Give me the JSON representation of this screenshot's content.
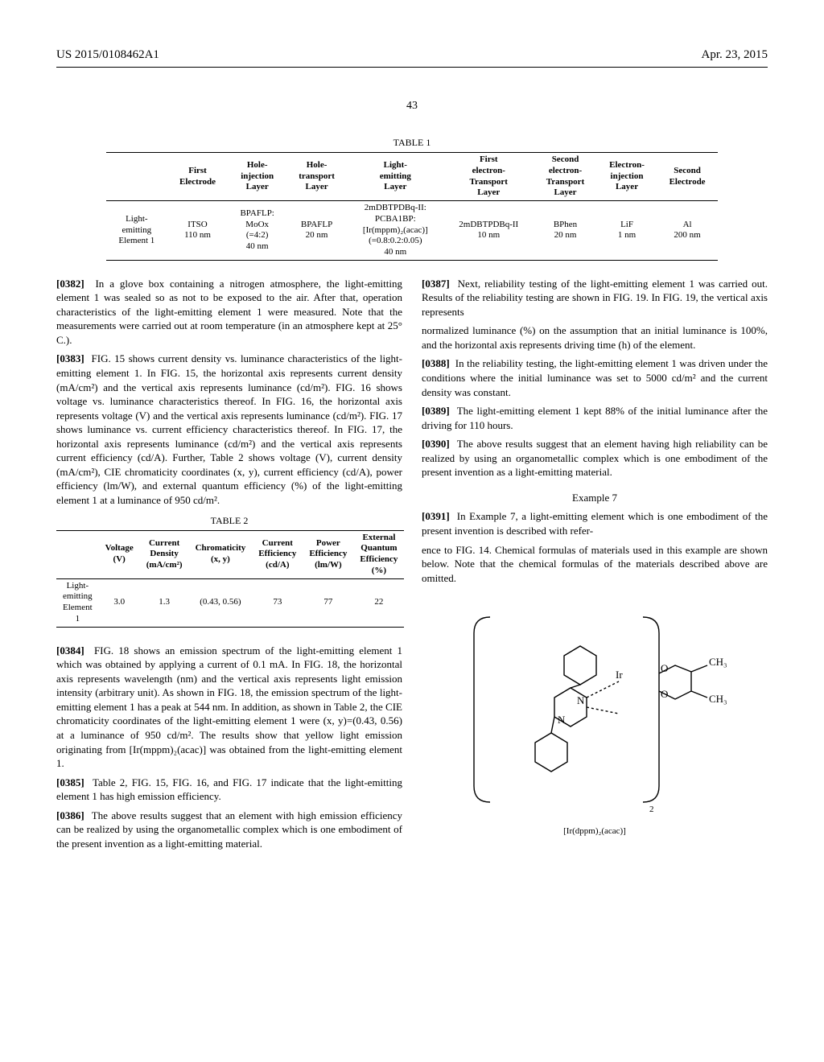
{
  "header": {
    "left": "US 2015/0108462A1",
    "right": "Apr. 23, 2015"
  },
  "page_number": "43",
  "table1": {
    "caption": "TABLE 1",
    "columns": [
      "",
      "First\nElectrode",
      "Hole-\ninjection\nLayer",
      "Hole-\ntransport\nLayer",
      "Light-\nemitting\nLayer",
      "First\nelectron-\nTransport\nLayer",
      "Second\nelectron-\nTransport\nLayer",
      "Electron-\ninjection\nLayer",
      "Second\nElectrode"
    ],
    "row": [
      "Light-\nemitting\nElement 1",
      "ITSO\n110 nm",
      "BPAFLP:\nMoOx\n(=4:2)\n40 nm",
      "BPAFLP\n20 nm",
      "2mDBTPDBq-II:\nPCBA1BP:\n[Ir(mppm)₂(acac)]\n(=0.8:0.2:0.05)\n40 nm",
      "2mDBTPDBq-II\n10 nm",
      "BPhen\n20 nm",
      "LiF\n1 nm",
      "Al\n200 nm"
    ]
  },
  "table2": {
    "caption": "TABLE 2",
    "columns": [
      "",
      "Voltage\n(V)",
      "Current\nDensity\n(mA/cm²)",
      "Chromaticity\n(x, y)",
      "Current\nEfficiency\n(cd/A)",
      "Power\nEfficiency\n(lm/W)",
      "External\nQuantum\nEfficiency\n(%)"
    ],
    "row": [
      "Light-\nemitting\nElement 1",
      "3.0",
      "1.3",
      "(0.43, 0.56)",
      "73",
      "77",
      "22"
    ]
  },
  "paras": {
    "p0382": "In a glove box containing a nitrogen atmosphere, the light-emitting element 1 was sealed so as not to be exposed to the air. After that, operation characteristics of the light-emitting element 1 were measured. Note that the measurements were carried out at room temperature (in an atmosphere kept at 25° C.).",
    "p0383": "FIG. 15 shows current density vs. luminance characteristics of the light-emitting element 1. In FIG. 15, the horizontal axis represents current density (mA/cm²) and the vertical axis represents luminance (cd/m²). FIG. 16 shows voltage vs. luminance characteristics thereof. In FIG. 16, the horizontal axis represents voltage (V) and the vertical axis represents luminance (cd/m²). FIG. 17 shows luminance vs. current efficiency characteristics thereof. In FIG. 17, the horizontal axis represents luminance (cd/m²) and the vertical axis represents current efficiency (cd/A). Further, Table 2 shows voltage (V), current density (mA/cm²), CIE chromaticity coordinates (x, y), current efficiency (cd/A), power efficiency (lm/W), and external quantum efficiency (%) of the light-emitting element 1 at a luminance of 950 cd/m².",
    "p0384": "FIG. 18 shows an emission spectrum of the light-emitting element 1 which was obtained by applying a current of 0.1 mA. In FIG. 18, the horizontal axis represents wavelength (nm) and the vertical axis represents light emission intensity (arbitrary unit). As shown in FIG. 18, the emission spectrum of the light-emitting element 1 has a peak at 544 nm. In addition, as shown in Table 2, the CIE chromaticity coordinates of the light-emitting element 1 were (x, y)=(0.43, 0.56) at a luminance of 950 cd/m². The results show that yellow light emission originating from [Ir(mppm)₂(acac)] was obtained from the light-emitting element 1.",
    "p0385": "Table 2, FIG. 15, FIG. 16, and FIG. 17 indicate that the light-emitting element 1 has high emission efficiency.",
    "p0386": "The above results suggest that an element with high emission efficiency can be realized by using the organometallic complex which is one embodiment of the present invention as a light-emitting material.",
    "p0387": "Next, reliability testing of the light-emitting element 1 was carried out. Results of the reliability testing are shown in FIG. 19. In FIG. 19, the vertical axis represents",
    "right_top": "normalized luminance (%) on the assumption that an initial luminance is 100%, and the horizontal axis represents driving time (h) of the element.",
    "p0388": "In the reliability testing, the light-emitting element 1 was driven under the conditions where the initial luminance was set to 5000 cd/m² and the current density was constant.",
    "p0389": "The light-emitting element 1 kept 88% of the initial luminance after the driving for 110 hours.",
    "p0390": "The above results suggest that an element having high reliability can be realized by using an organometallic complex which is one embodiment of the present invention as a light-emitting material.",
    "example7": "Example 7",
    "p0391": "In Example 7, a light-emitting element which is one embodiment of the present invention is described with refer-",
    "right_after_t2": "ence to FIG. 14. Chemical formulas of materials used in this example are shown below. Note that the chemical formulas of the materials described above are omitted."
  },
  "molecule_label": "[Ir(dppm)₂(acac)]",
  "para_labels": {
    "l0382": "[0382]",
    "l0383": "[0383]",
    "l0384": "[0384]",
    "l0385": "[0385]",
    "l0386": "[0386]",
    "l0387": "[0387]",
    "l0388": "[0388]",
    "l0389": "[0389]",
    "l0390": "[0390]",
    "l0391": "[0391]"
  },
  "mol_labels": {
    "ch3a": "CH₃",
    "ch3b": "CH₃",
    "o1": "O",
    "o2": "O",
    "ir": "Ir",
    "n1": "N",
    "n2": "N",
    "sub2": "2"
  }
}
